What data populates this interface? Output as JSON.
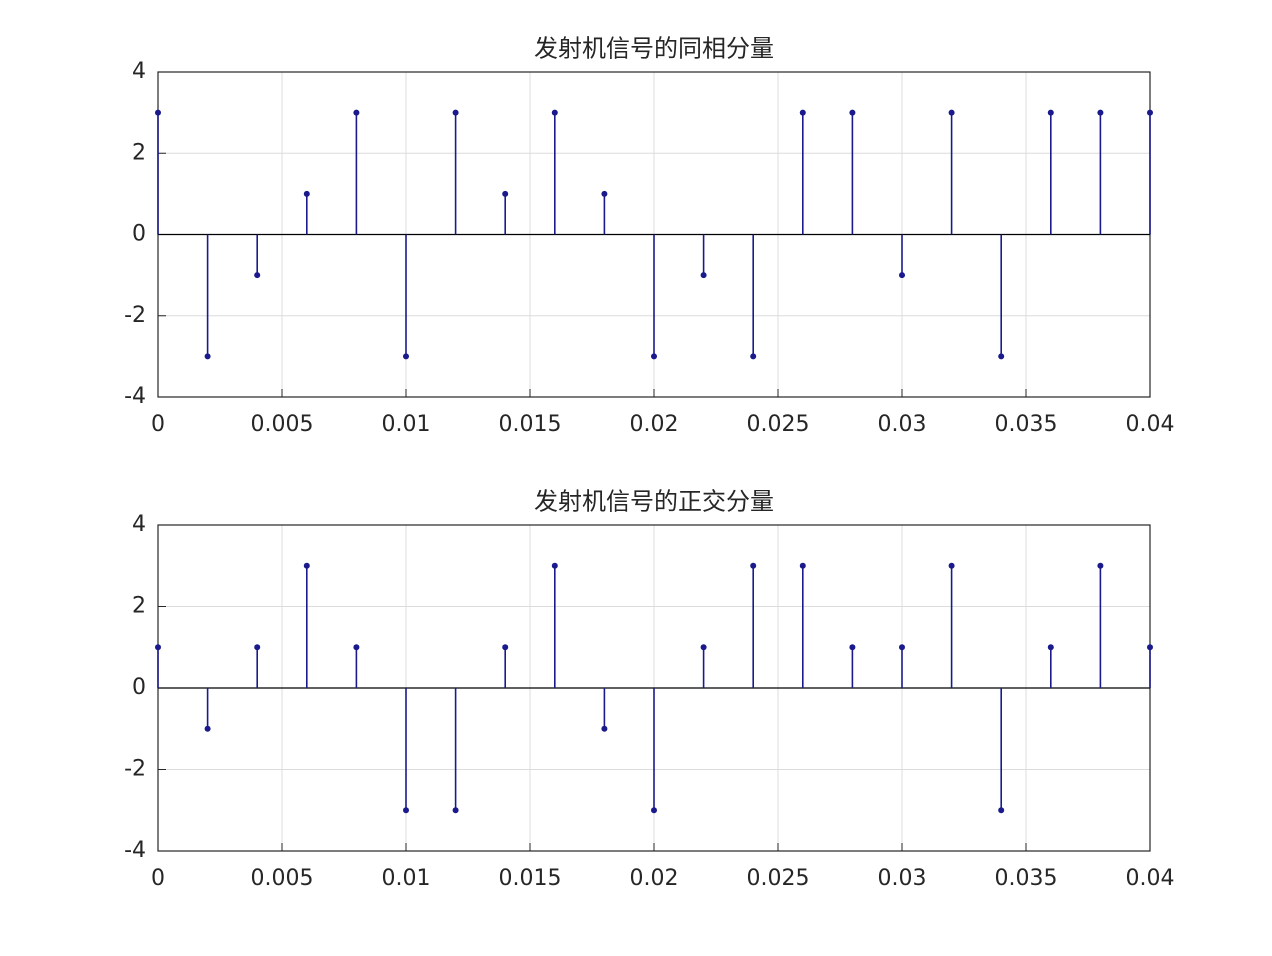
{
  "chart_data": [
    {
      "type": "stem",
      "title": "发射机信号的同相分量",
      "x": [
        0,
        0.002,
        0.004,
        0.006,
        0.008,
        0.01,
        0.012,
        0.014,
        0.016,
        0.018,
        0.02,
        0.022,
        0.024,
        0.026,
        0.028,
        0.03,
        0.032,
        0.034,
        0.036,
        0.038,
        0.04
      ],
      "values": [
        3,
        -3,
        -1,
        1,
        3,
        -3,
        3,
        1,
        3,
        1,
        -3,
        -1,
        -3,
        3,
        3,
        -1,
        3,
        -3,
        3,
        3,
        3
      ],
      "color": "#1a1a8c",
      "xlim": [
        0,
        0.04
      ],
      "xticks": [
        0,
        0.005,
        0.01,
        0.015,
        0.02,
        0.025,
        0.03,
        0.035,
        0.04
      ],
      "ylim": [
        -4,
        4
      ],
      "yticks": [
        -4,
        -2,
        0,
        2,
        4
      ],
      "grid": true
    },
    {
      "type": "stem",
      "title": "发射机信号的正交分量",
      "x": [
        0,
        0.002,
        0.004,
        0.006,
        0.008,
        0.01,
        0.012,
        0.014,
        0.016,
        0.018,
        0.02,
        0.022,
        0.024,
        0.026,
        0.028,
        0.03,
        0.032,
        0.034,
        0.036,
        0.038,
        0.04
      ],
      "values": [
        1,
        -1,
        1,
        3,
        1,
        -3,
        -3,
        1,
        3,
        -1,
        -3,
        1,
        3,
        3,
        1,
        1,
        3,
        -3,
        1,
        3,
        1
      ],
      "color": "#1a1a8c",
      "xlim": [
        0,
        0.04
      ],
      "xticks": [
        0,
        0.005,
        0.01,
        0.015,
        0.02,
        0.025,
        0.03,
        0.035,
        0.04
      ],
      "ylim": [
        -4,
        4
      ],
      "yticks": [
        -4,
        -2,
        0,
        2,
        4
      ],
      "grid": true
    }
  ]
}
